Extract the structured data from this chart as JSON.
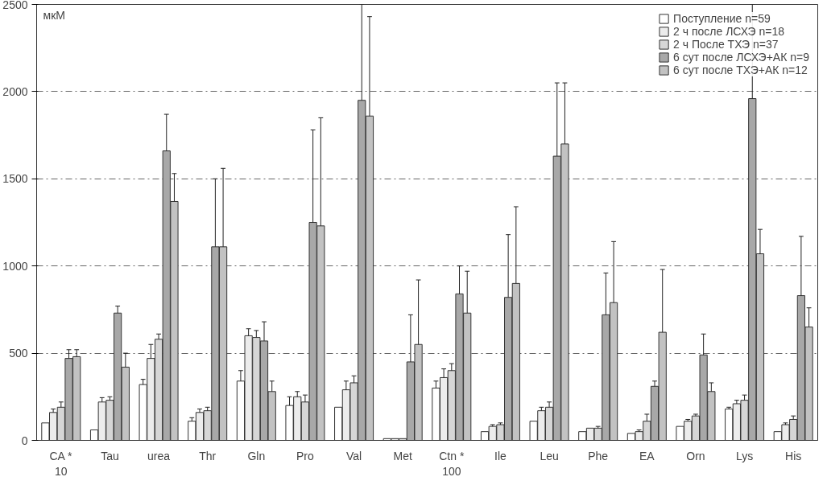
{
  "chart_data": {
    "type": "bar",
    "ylabel": "мкМ",
    "categories": [
      "CA *\n10",
      "Tau",
      "urea",
      "Thr",
      "Gln",
      "Pro",
      "Val",
      "Met",
      "Ctn *\n100",
      "Ile",
      "Leu",
      "Phe",
      "EA",
      "Orn",
      "Lys",
      "His"
    ],
    "series": [
      {
        "name": "Поступление n=59",
        "color": "#ffffff",
        "values": [
          100,
          60,
          320,
          110,
          340,
          200,
          190,
          10,
          300,
          50,
          110,
          50,
          40,
          80,
          180,
          50
        ],
        "errors": [
          null,
          null,
          [
            320,
            350
          ],
          [
            110,
            130
          ],
          [
            340,
            400
          ],
          [
            200,
            250
          ],
          null,
          null,
          [
            300,
            340
          ],
          null,
          null,
          null,
          null,
          null,
          [
            180,
            190
          ],
          null
        ]
      },
      {
        "name": "2 ч после ЛСХЭ n=18",
        "color": "#ececec",
        "values": [
          160,
          220,
          470,
          160,
          600,
          250,
          290,
          10,
          360,
          80,
          170,
          70,
          50,
          110,
          210,
          90
        ],
        "errors": [
          [
            160,
            180
          ],
          [
            220,
            245
          ],
          [
            470,
            550
          ],
          [
            160,
            180
          ],
          [
            600,
            640
          ],
          [
            250,
            280
          ],
          [
            290,
            340
          ],
          null,
          [
            360,
            410
          ],
          [
            80,
            90
          ],
          [
            170,
            190
          ],
          null,
          [
            50,
            60
          ],
          [
            110,
            120
          ],
          [
            210,
            230
          ],
          [
            90,
            100
          ]
        ]
      },
      {
        "name": "2 ч После ТХЭ n=37",
        "color": "#d6d6d6",
        "values": [
          190,
          230,
          580,
          170,
          590,
          220,
          330,
          10,
          400,
          90,
          190,
          70,
          110,
          140,
          230,
          120
        ],
        "errors": [
          [
            190,
            220
          ],
          [
            230,
            250
          ],
          [
            580,
            610
          ],
          [
            170,
            190
          ],
          [
            590,
            630
          ],
          [
            220,
            260
          ],
          [
            330,
            370
          ],
          null,
          [
            400,
            440
          ],
          [
            90,
            100
          ],
          [
            190,
            220
          ],
          [
            70,
            80
          ],
          [
            110,
            150
          ],
          [
            140,
            150
          ],
          [
            230,
            260
          ],
          [
            120,
            140
          ]
        ]
      },
      {
        "name": "6 сут после ЛСХЭ+АК n=9",
        "color": "#a8a8a8",
        "values": [
          470,
          730,
          1660,
          1110,
          570,
          1250,
          1950,
          450,
          840,
          820,
          1630,
          720,
          310,
          490,
          1960,
          830
        ],
        "errors": [
          [
            470,
            520
          ],
          [
            730,
            770
          ],
          [
            1660,
            1870
          ],
          [
            1110,
            1500
          ],
          [
            570,
            680
          ],
          [
            1250,
            1780
          ],
          [
            1950,
            2500
          ],
          [
            450,
            720
          ],
          [
            840,
            1000
          ],
          [
            820,
            1180
          ],
          [
            1630,
            2050
          ],
          [
            720,
            960
          ],
          [
            310,
            340
          ],
          [
            490,
            610
          ],
          [
            1960,
            2500
          ],
          [
            830,
            1170
          ]
        ]
      },
      {
        "name": "6 сут после ТХЭ+АК n=12",
        "color": "#c2c2c2",
        "values": [
          480,
          420,
          1370,
          1110,
          280,
          1230,
          1860,
          550,
          730,
          900,
          1700,
          790,
          620,
          280,
          1070,
          650
        ],
        "errors": [
          [
            480,
            520
          ],
          [
            420,
            500
          ],
          [
            1370,
            1530
          ],
          [
            1110,
            1560
          ],
          [
            280,
            340
          ],
          [
            1230,
            1850
          ],
          [
            1860,
            2430
          ],
          [
            550,
            920
          ],
          [
            730,
            970
          ],
          [
            900,
            1340
          ],
          [
            1700,
            2050
          ],
          [
            790,
            1140
          ],
          [
            620,
            980
          ],
          [
            280,
            330
          ],
          [
            1070,
            1210
          ],
          [
            650,
            760
          ]
        ]
      }
    ],
    "ylim": [
      0,
      2500
    ],
    "yticks": [
      0,
      500,
      1000,
      1500,
      2000,
      2500
    ],
    "grid": "y",
    "legend": "top right"
  }
}
